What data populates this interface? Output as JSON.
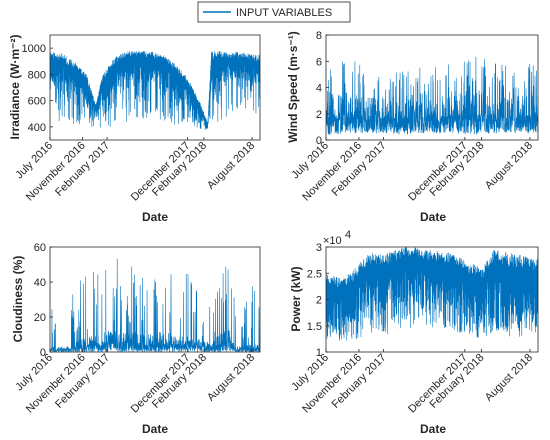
{
  "legend": {
    "label": "INPUT VARIABLES",
    "color": "#0072BD"
  },
  "series_color": "#0072BD",
  "chart_data": [
    {
      "type": "area",
      "title": "",
      "xlabel": "Date",
      "ylabel": "Irradiance (W·m⁻²)",
      "ylim": [
        300,
        1100
      ],
      "yticks": [
        400,
        600,
        800,
        1000
      ],
      "xticks": [
        "July 2016",
        "November 2016",
        "February 2017",
        "December 2017",
        "February 2018",
        "August 2018"
      ],
      "xtick_positions": [
        "2016-07-01",
        "2016-11-01",
        "2017-02-01",
        "2017-12-01",
        "2018-02-01",
        "2018-08-01"
      ],
      "xlim": [
        "2016-07-01",
        "2018-08-31"
      ],
      "envelope": {
        "dates": [
          "2016-07-01",
          "2016-08-15",
          "2016-10-01",
          "2016-11-15",
          "2016-12-20",
          "2017-01-15",
          "2017-03-01",
          "2017-04-15",
          "2017-06-01",
          "2017-07-15",
          "2017-09-01",
          "2017-10-15",
          "2017-12-01",
          "2018-01-15",
          "2018-02-15",
          "2018-03-01",
          "2018-04-15",
          "2018-06-01",
          "2018-07-15",
          "2018-08-31"
        ],
        "upper": [
          980,
          960,
          900,
          800,
          580,
          800,
          930,
          980,
          980,
          975,
          950,
          880,
          780,
          600,
          430,
          980,
          975,
          975,
          965,
          950
        ],
        "lower": [
          420,
          450,
          420,
          400,
          370,
          380,
          400,
          440,
          460,
          460,
          450,
          420,
          400,
          380,
          370,
          420,
          440,
          460,
          460,
          440
        ],
        "typical_low": [
          720,
          700,
          650,
          560,
          450,
          560,
          680,
          740,
          760,
          750,
          720,
          640,
          560,
          460,
          400,
          720,
          740,
          760,
          750,
          720
        ]
      }
    },
    {
      "type": "area",
      "title": "",
      "xlabel": "Date",
      "ylabel": "Wind Speed (m·s⁻¹)",
      "ylim": [
        0,
        8
      ],
      "yticks": [
        0,
        2,
        4,
        6,
        8
      ],
      "xticks": [
        "July 2016",
        "November 2016",
        "February 2017",
        "December 2017",
        "February 2018",
        "August 2018"
      ],
      "xtick_positions": [
        "2016-07-01",
        "2016-11-01",
        "2017-02-01",
        "2017-12-01",
        "2018-02-01",
        "2018-08-01"
      ],
      "xlim": [
        "2016-07-01",
        "2018-08-31"
      ],
      "envelope": {
        "dates": [
          "2016-07-01",
          "2016-10-01",
          "2017-01-01",
          "2017-04-01",
          "2017-07-01",
          "2017-10-01",
          "2018-01-01",
          "2018-04-01",
          "2018-08-31"
        ],
        "upper": [
          6.0,
          6.3,
          5.5,
          5.5,
          5.6,
          6.0,
          6.5,
          5.8,
          5.8
        ],
        "lower": [
          0.4,
          0.5,
          0.5,
          0.4,
          0.5,
          0.5,
          0.4,
          0.5,
          0.5
        ],
        "typical_high": [
          3.5,
          3.6,
          3.2,
          3.0,
          3.1,
          3.4,
          3.8,
          3.3,
          3.4
        ]
      }
    },
    {
      "type": "area",
      "title": "",
      "xlabel": "Date",
      "ylabel": "Cloudiness (%)",
      "ylim": [
        0,
        60
      ],
      "yticks": [
        0,
        20,
        40,
        60
      ],
      "xticks": [
        "July 2016",
        "November 2016",
        "February 2017",
        "December 2017",
        "February 2018",
        "August 2018"
      ],
      "xtick_positions": [
        "2016-07-01",
        "2016-11-01",
        "2017-02-01",
        "2017-12-01",
        "2018-02-01",
        "2018-08-01"
      ],
      "xlim": [
        "2016-07-01",
        "2018-08-31"
      ],
      "envelope": {
        "dates": [
          "2016-07-01",
          "2016-09-01",
          "2016-11-01",
          "2017-01-01",
          "2017-03-01",
          "2017-05-01",
          "2017-07-01",
          "2017-09-01",
          "2017-11-01",
          "2018-01-01",
          "2018-03-01",
          "2018-05-01",
          "2018-06-01",
          "2018-08-31"
        ],
        "upper": [
          35,
          30,
          45,
          48,
          55,
          52,
          50,
          48,
          52,
          40,
          35,
          55,
          25,
          45
        ],
        "lower": [
          0,
          0,
          0,
          0,
          0,
          0,
          0,
          0,
          0,
          0,
          0,
          0,
          0,
          0
        ],
        "typical_high": [
          3,
          3,
          8,
          10,
          14,
          12,
          10,
          12,
          10,
          8,
          5,
          15,
          3,
          5
        ]
      }
    },
    {
      "type": "area",
      "title": "",
      "xlabel": "Date",
      "ylabel": "Power (kW)",
      "ylim": [
        10000,
        30000
      ],
      "yticks": [
        10000,
        15000,
        20000,
        25000,
        30000
      ],
      "ytick_labels": [
        "1",
        "1.5",
        "2",
        "2.5",
        "3"
      ],
      "y_multiplier": "×10",
      "y_multiplier_exp": "4",
      "xticks": [
        "July 2016",
        "November 2016",
        "February 2017",
        "December 2017",
        "February 2018",
        "August 2018"
      ],
      "xtick_positions": [
        "2016-07-01",
        "2016-11-01",
        "2017-02-01",
        "2017-12-01",
        "2018-02-01",
        "2018-08-01"
      ],
      "xlim": [
        "2016-07-01",
        "2018-08-31"
      ],
      "envelope": {
        "dates": [
          "2016-07-01",
          "2016-09-01",
          "2016-11-01",
          "2016-12-15",
          "2017-02-01",
          "2017-04-01",
          "2017-06-01",
          "2017-08-01",
          "2017-10-01",
          "2017-12-01",
          "2018-02-01",
          "2018-03-15",
          "2018-05-01",
          "2018-08-31"
        ],
        "upper": [
          25000,
          24000,
          27000,
          29000,
          28500,
          30000,
          30000,
          29500,
          29000,
          27500,
          26000,
          29500,
          29000,
          28000
        ],
        "lower": [
          12500,
          12000,
          12500,
          13500,
          13000,
          14000,
          14500,
          14000,
          13500,
          13500,
          12500,
          13500,
          13000,
          12500
        ],
        "typical_low": [
          16000,
          15500,
          16500,
          19000,
          18500,
          20000,
          20500,
          19500,
          19000,
          17500,
          16000,
          18000,
          17500,
          16500
        ]
      }
    }
  ]
}
